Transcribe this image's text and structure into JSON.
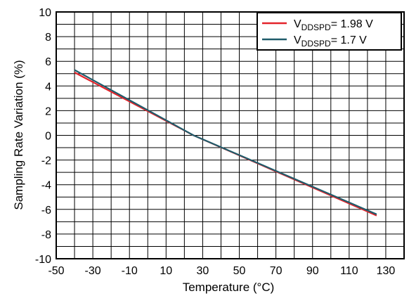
{
  "chart_data": {
    "type": "line",
    "xlabel": "Temperature (°C)",
    "ylabel": "Sampling Rate Variation (%)",
    "xlim": [
      -50,
      140
    ],
    "ylim": [
      -10,
      10
    ],
    "x_ticks": [
      -50,
      -30,
      -10,
      10,
      30,
      50,
      70,
      90,
      110,
      130
    ],
    "y_ticks": [
      10,
      8,
      6,
      4,
      2,
      0,
      -2,
      -4,
      -6,
      -8,
      -10
    ],
    "grid": true,
    "legend_position": "top-right",
    "series": [
      {
        "name_main": "V",
        "name_sub": "DDSPD",
        "name_rest": "= 1.98 V",
        "color": "#e3242b",
        "x": [
          -40,
          25,
          125
        ],
        "y": [
          5.1,
          0,
          -6.5
        ]
      },
      {
        "name_main": "V",
        "name_sub": "DDSPD",
        "name_rest": "= 1.7 V",
        "color": "#1f5c6b",
        "x": [
          -40,
          25,
          125
        ],
        "y": [
          5.3,
          0,
          -6.4
        ]
      }
    ]
  }
}
